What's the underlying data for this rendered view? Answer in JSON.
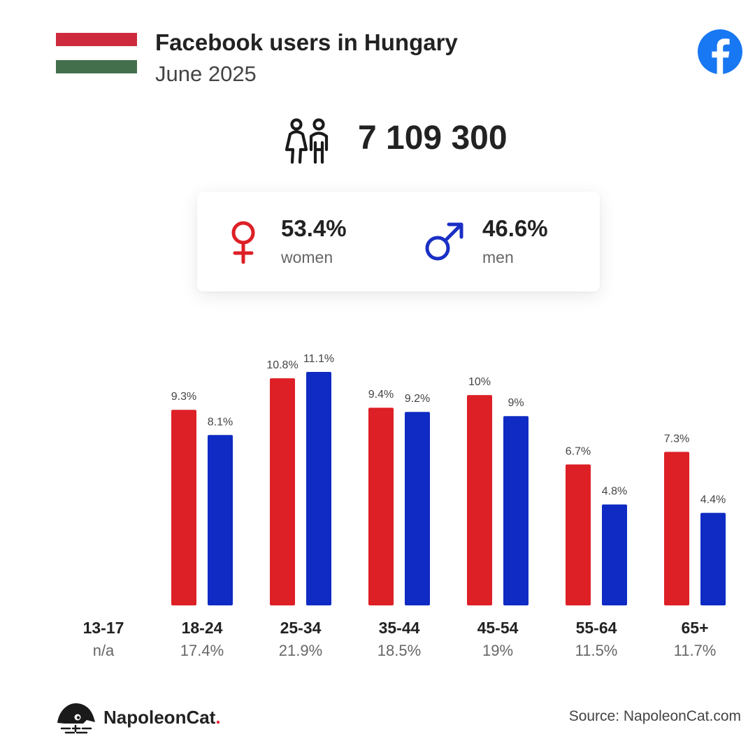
{
  "header": {
    "title": "Facebook users in Hungary",
    "subtitle": "June 2025",
    "flag_colors": [
      "#cd2a3e",
      "#ffffff",
      "#436f4d"
    ]
  },
  "total": {
    "value": "7 109 300",
    "icon": "people-icon"
  },
  "gender": {
    "women": {
      "value": "53.4%",
      "label": "women",
      "icon": "female-symbol-icon",
      "color": "#dd1f26"
    },
    "men": {
      "value": "46.6%",
      "label": "men",
      "icon": "male-symbol-icon",
      "color": "#1a2fc4"
    }
  },
  "chart_data": {
    "type": "bar",
    "categories": [
      "13-17",
      "18-24",
      "25-34",
      "35-44",
      "45-54",
      "55-64",
      "65+"
    ],
    "category_totals": [
      "n/a",
      "17.4%",
      "21.9%",
      "18.5%",
      "19%",
      "11.5%",
      "11.7%"
    ],
    "series": [
      {
        "values": [
          null,
          9.3,
          10.8,
          9.4,
          10,
          6.7,
          7.3
        ],
        "labels": [
          "",
          "9.3%",
          "10.8%",
          "9.4%",
          "10%",
          "6.7%",
          "7.3%"
        ],
        "color": "#dd1f26"
      },
      {
        "values": [
          null,
          8.1,
          11.1,
          9.2,
          9,
          4.8,
          4.4
        ],
        "labels": [
          "",
          "8.1%",
          "11.1%",
          "9.2%",
          "9%",
          "4.8%",
          "4.4%"
        ],
        "color": "#0f2bc3"
      }
    ],
    "ylim": [
      0,
      11.7
    ],
    "grid": false
  },
  "footer": {
    "brand_name": "NapoleonCat",
    "brand_dot": ".",
    "source": "Source: NapoleonCat.com",
    "brand_icon": "napoleoncat-logo-icon"
  }
}
